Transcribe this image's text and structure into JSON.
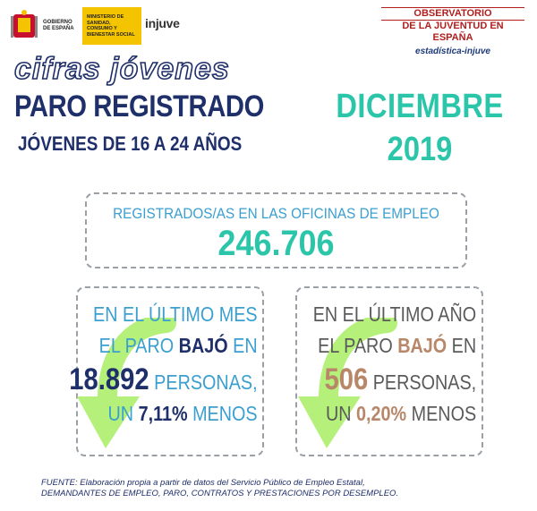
{
  "header": {
    "gov_text": "Gobierno de España",
    "ministry_text": "Ministerio de Sanidad, Consumo y Bienestar Social",
    "injuve_logo": "injuve",
    "observatory_line1": "OBSERVATORIO",
    "observatory_line2": "DE LA JUVENTUD EN ESPAÑA",
    "observatory_line3": "estadística-injuve"
  },
  "title": {
    "series": "cifras jóvenes",
    "main": "PARO REGISTRADO",
    "subtitle": "JÓVENES DE 16 A 24 AÑOS",
    "month": "DICIEMBRE",
    "year": "2019"
  },
  "total": {
    "label": "REGISTRADOS/AS EN LAS OFICINAS DE EMPLEO",
    "value": "246.706"
  },
  "monthly": {
    "line1": "EN EL ÚLTIMO MES",
    "line2_pre": "EL PARO ",
    "line2_em": "BAJÓ",
    "line2_post": " EN",
    "number": "18.892",
    "number_suffix": " PERSONAS,",
    "line4_pre": "UN ",
    "percent": "7,11%",
    "line4_post": " MENOS"
  },
  "yearly": {
    "line1": "EN EL ÚLTIMO AÑO",
    "line2_pre": "EL PARO ",
    "line2_em": "BAJÓ",
    "line2_post": " EN",
    "number": "506",
    "number_suffix": " PERSONAS,",
    "line4_pre": "UN ",
    "percent": "0,20%",
    "line4_post": " MENOS"
  },
  "footer": {
    "line1": "FUENTE: Elaboración propia a partir de datos del Servicio Público de Empleo Estatal,",
    "line2": "DEMANDANTES DE EMPLEO, PARO, CONTRATOS Y PRESTACIONES POR DESEMPLEO."
  },
  "colors": {
    "navy": "#1f2f6a",
    "teal": "#2bc6a9",
    "blue": "#3b9fcf",
    "arrow_green": "#b4f07a",
    "brown": "#b8876a",
    "red": "#b01e1e"
  }
}
